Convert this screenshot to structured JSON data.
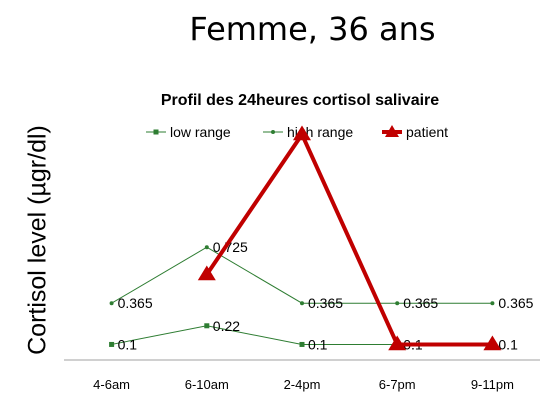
{
  "slide": {
    "title": "Femme, 36 ans"
  },
  "colors": {
    "low": "#2e7d32",
    "high": "#2e7d32",
    "patient": "#c00000",
    "axis": "#a0a0a0"
  },
  "chart_data": {
    "type": "line",
    "title": "Profil des 24heures cortisol salivaire",
    "xlabel": "",
    "ylabel": "Cortisol level (µgr/dl)",
    "categories": [
      "4-6am",
      "6-10am",
      "2-4pm",
      "6-7pm",
      "9-11pm"
    ],
    "ylim": [
      0,
      1.8
    ],
    "legend_position": "top",
    "grid": false,
    "series": [
      {
        "name": "low range",
        "key": "low",
        "values": [
          0.1,
          0.22,
          0.1,
          0.1,
          0.1
        ],
        "labels": [
          "0.1",
          "0.22",
          "0.1",
          "0.1",
          "0.1"
        ],
        "marker": "square"
      },
      {
        "name": "high range",
        "key": "high",
        "values": [
          0.365,
          0.725,
          0.365,
          0.365,
          0.365
        ],
        "labels": [
          "0.365",
          "0.725",
          "0.365",
          "0.365",
          "0.365"
        ],
        "marker": "dot"
      },
      {
        "name": "patient",
        "key": "patient",
        "values": [
          null,
          0.55,
          1.45,
          0.1,
          0.1
        ],
        "labels": [
          "",
          "",
          "",
          "",
          ""
        ],
        "marker": "triangle"
      }
    ]
  }
}
